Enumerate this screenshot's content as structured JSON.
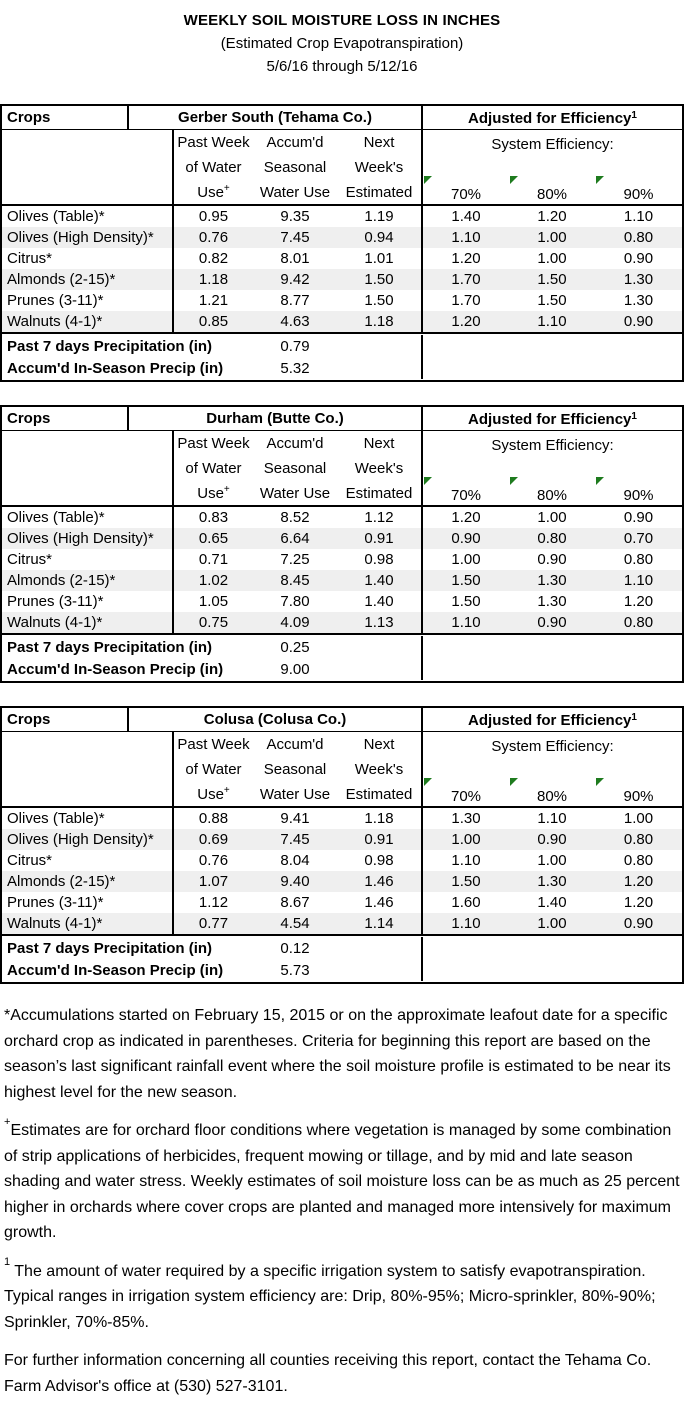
{
  "page": {
    "title": "WEEKLY SOIL MOISTURE LOSS IN INCHES",
    "subtitle": "(Estimated Crop Evapotranspiration)",
    "date_range": "5/6/16 through 5/12/16"
  },
  "header_labels": {
    "crops": "Crops",
    "adjusted": "Adjusted for Efficiency",
    "adjusted_sup": "1",
    "col1_lines": [
      "Past Week",
      "of Water",
      "Use"
    ],
    "col1_sup": "+",
    "col2_lines": [
      "Accum'd",
      "Seasonal",
      "Water Use"
    ],
    "col3_lines": [
      "Next",
      "Week's",
      "Estimated"
    ],
    "system_efficiency": "System Efficiency:",
    "efficiencies": [
      "70%",
      "80%",
      "90%"
    ]
  },
  "tables": [
    {
      "location": "Gerber South (Tehama Co.)",
      "rows": [
        {
          "crop": "Olives (Table)*",
          "values": [
            "0.95",
            "9.35",
            "1.19",
            "1.40",
            "1.20",
            "1.10"
          ]
        },
        {
          "crop": "Olives (High Density)*",
          "values": [
            "0.76",
            "7.45",
            "0.94",
            "1.10",
            "1.00",
            "0.80"
          ]
        },
        {
          "crop": "Citrus*",
          "values": [
            "0.82",
            "8.01",
            "1.01",
            "1.20",
            "1.00",
            "0.90"
          ]
        },
        {
          "crop": "Almonds (2-15)*",
          "values": [
            "1.18",
            "9.42",
            "1.50",
            "1.70",
            "1.50",
            "1.30"
          ]
        },
        {
          "crop": "Prunes (3-11)*",
          "values": [
            "1.21",
            "8.77",
            "1.50",
            "1.70",
            "1.50",
            "1.30"
          ]
        },
        {
          "crop": "Walnuts (4-1)*",
          "values": [
            "0.85",
            "4.63",
            "1.18",
            "1.20",
            "1.10",
            "0.90"
          ]
        }
      ],
      "footer": [
        {
          "label": "Past 7 days Precipitation (in)",
          "value": "0.79"
        },
        {
          "label": "Accum'd In-Season Precip (in)",
          "value": "5.32"
        }
      ]
    },
    {
      "location": "Durham (Butte Co.)",
      "rows": [
        {
          "crop": "Olives (Table)*",
          "values": [
            "0.83",
            "8.52",
            "1.12",
            "1.20",
            "1.00",
            "0.90"
          ]
        },
        {
          "crop": "Olives (High Density)*",
          "values": [
            "0.65",
            "6.64",
            "0.91",
            "0.90",
            "0.80",
            "0.70"
          ]
        },
        {
          "crop": "Citrus*",
          "values": [
            "0.71",
            "7.25",
            "0.98",
            "1.00",
            "0.90",
            "0.80"
          ]
        },
        {
          "crop": "Almonds (2-15)*",
          "values": [
            "1.02",
            "8.45",
            "1.40",
            "1.50",
            "1.30",
            "1.10"
          ]
        },
        {
          "crop": "Prunes (3-11)*",
          "values": [
            "1.05",
            "7.80",
            "1.40",
            "1.50",
            "1.30",
            "1.20"
          ]
        },
        {
          "crop": "Walnuts (4-1)*",
          "values": [
            "0.75",
            "4.09",
            "1.13",
            "1.10",
            "0.90",
            "0.80"
          ]
        }
      ],
      "footer": [
        {
          "label": "Past 7 days Precipitation (in)",
          "value": "0.25"
        },
        {
          "label": "Accum'd In-Season Precip (in)",
          "value": "9.00"
        }
      ]
    },
    {
      "location": "Colusa (Colusa Co.)",
      "rows": [
        {
          "crop": "Olives (Table)*",
          "values": [
            "0.88",
            "9.41",
            "1.18",
            "1.30",
            "1.10",
            "1.00"
          ]
        },
        {
          "crop": "Olives (High Density)*",
          "values": [
            "0.69",
            "7.45",
            "0.91",
            "1.00",
            "0.90",
            "0.80"
          ]
        },
        {
          "crop": "Citrus*",
          "values": [
            "0.76",
            "8.04",
            "0.98",
            "1.10",
            "1.00",
            "0.80"
          ]
        },
        {
          "crop": "Almonds (2-15)*",
          "values": [
            "1.07",
            "9.40",
            "1.46",
            "1.50",
            "1.30",
            "1.20"
          ]
        },
        {
          "crop": "Prunes (3-11)*",
          "values": [
            "1.12",
            "8.67",
            "1.46",
            "1.60",
            "1.40",
            "1.20"
          ]
        },
        {
          "crop": "Walnuts (4-1)*",
          "values": [
            "0.77",
            "4.54",
            "1.14",
            "1.10",
            "1.00",
            "0.90"
          ]
        }
      ],
      "footer": [
        {
          "label": "Past 7 days Precipitation (in)",
          "value": "0.12"
        },
        {
          "label": "Accum'd In-Season Precip (in)",
          "value": "5.73"
        }
      ]
    }
  ],
  "footnotes": [
    {
      "sup": "",
      "text": "*Accumulations started on February 15, 2015 or on the approximate leafout date for a specific orchard crop as indicated in parentheses.  Criteria for beginning this report are based on the season’s last significant rainfall event where the soil moisture profile is estimated to be near its highest level for the new season."
    },
    {
      "sup": "+",
      "text": "Estimates are for orchard floor conditions where vegetation is managed by some combination of strip applications of herbicides, frequent mowing or tillage, and by mid and late season shading and water stress.  Weekly estimates of soil moisture loss can be as much as 25 percent higher in orchards where cover crops are planted and managed more intensively for maximum growth."
    },
    {
      "sup": "1",
      "text": " The amount of water required by a specific irrigation system to satisfy evapotranspiration. Typical ranges in irrigation system efficiency are: Drip, 80%-95%; Micro-sprinkler, 80%-90%; Sprinkler, 70%-85%."
    },
    {
      "sup": "",
      "text": "For further information concerning all counties receiving this report, contact the Tehama Co. Farm Advisor's office at (530) 527-3101."
    }
  ],
  "colors": {
    "border": "#000000",
    "row_alternate": "#efefef",
    "flag_green": "#1e7b1e"
  }
}
